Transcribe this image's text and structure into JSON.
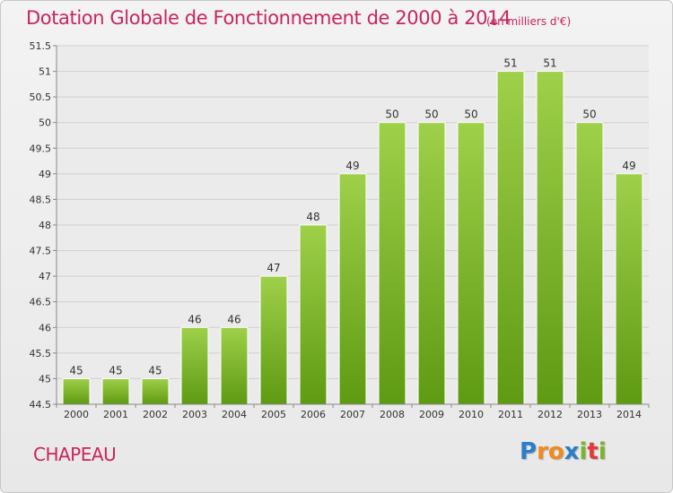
{
  "header": {
    "title": "Dotation Globale de Fonctionnement de 2000 à 2014",
    "unit": "(en milliers d'€)"
  },
  "footer": {
    "commune": "CHAPEAU",
    "logo": "Proxiti"
  },
  "colors": {
    "title": "#c8265a",
    "bar_top": "#9fd04a",
    "bar_bottom": "#5e9a12",
    "grid": "#cfcfcf"
  },
  "chart_data": {
    "type": "bar",
    "title": "Dotation Globale de Fonctionnement de 2000 à 2014",
    "subtitle": "(en milliers d'€)",
    "xlabel": "",
    "ylabel": "",
    "ylim": [
      44.5,
      51.5
    ],
    "yticks": [
      44.5,
      45,
      45.5,
      46,
      46.5,
      47,
      47.5,
      48,
      48.5,
      49,
      49.5,
      50,
      50.5,
      51,
      51.5
    ],
    "grid": true,
    "categories": [
      "2000",
      "2001",
      "2002",
      "2003",
      "2004",
      "2005",
      "2006",
      "2007",
      "2008",
      "2009",
      "2010",
      "2011",
      "2012",
      "2013",
      "2014"
    ],
    "values": [
      45,
      45,
      45,
      46,
      46,
      47,
      48,
      49,
      50,
      50,
      50,
      51,
      51,
      50,
      49
    ]
  }
}
